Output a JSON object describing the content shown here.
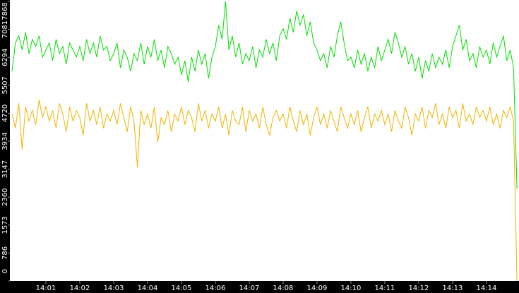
{
  "chart_data": {
    "type": "line",
    "x": [
      0,
      0.1,
      0.2,
      0.3,
      0.4,
      0.5,
      0.6,
      0.7,
      0.8,
      0.9,
      1,
      1.1,
      1.2,
      1.3,
      1.4,
      1.5,
      1.6,
      1.7,
      1.8,
      1.9,
      2,
      2.1,
      2.2,
      2.3,
      2.4,
      2.5,
      2.6,
      2.7,
      2.8,
      2.9,
      3,
      3.1,
      3.2,
      3.3,
      3.4,
      3.5,
      3.6,
      3.7,
      3.8,
      3.9,
      4,
      4.1,
      4.2,
      4.3,
      4.4,
      4.5,
      4.6,
      4.7,
      4.8,
      4.9,
      5,
      5.1,
      5.2,
      5.3,
      5.4,
      5.5,
      5.6,
      5.7,
      5.8,
      5.9,
      6,
      6.1,
      6.2,
      6.3,
      6.4,
      6.5,
      6.6,
      6.7,
      6.8,
      6.9,
      7,
      7.1,
      7.2,
      7.3,
      7.4,
      7.5,
      7.6,
      7.7,
      7.8,
      7.9,
      8,
      8.1,
      8.2,
      8.3,
      8.4,
      8.5,
      8.6,
      8.7,
      8.8,
      8.9,
      9,
      9.1,
      9.2,
      9.3,
      9.4,
      9.5,
      9.6,
      9.7,
      9.8,
      9.9,
      10,
      10.1,
      10.2,
      10.3,
      10.4,
      10.5,
      10.6,
      10.7,
      10.8,
      10.9,
      11,
      11.1,
      11.2,
      11.3,
      11.4,
      11.5,
      11.6,
      11.7,
      11.8,
      11.9,
      12,
      12.1,
      12.2,
      12.3,
      12.4,
      12.5,
      12.6,
      12.7,
      12.8,
      12.9,
      13,
      13.1,
      13.2,
      13.3,
      13.4,
      13.5,
      13.6,
      13.7,
      13.8,
      13.9,
      14,
      14.1,
      14.2,
      14.3,
      14.4,
      14.5,
      14.6,
      14.7,
      14.8,
      14.9
    ],
    "series": [
      {
        "color": "#00e000",
        "values": [
          5900,
          6700,
          6900,
          6500,
          7000,
          6400,
          6800,
          6600,
          6900,
          6300,
          6500,
          6700,
          6200,
          6800,
          6400,
          6600,
          6100,
          6700,
          6500,
          6300,
          6600,
          6200,
          6800,
          6400,
          6700,
          6300,
          6900,
          6500,
          6600,
          6200,
          6400,
          6700,
          6000,
          6500,
          6300,
          5900,
          6400,
          6200,
          6700,
          6100,
          6600,
          6300,
          6800,
          6200,
          6500,
          6000,
          6600,
          6400,
          6100,
          6300,
          5800,
          6200,
          5600,
          6300,
          5900,
          6500,
          6100,
          6400,
          5700,
          6300,
          6600,
          7200,
          6800,
          7868,
          6500,
          6900,
          6300,
          6700,
          6100,
          6400,
          6200,
          6600,
          6000,
          6500,
          6300,
          6800,
          6400,
          6700,
          6200,
          6900,
          7100,
          6800,
          7400,
          7000,
          7600,
          7200,
          7500,
          6900,
          7300,
          6700,
          6500,
          6200,
          6400,
          6000,
          6600,
          6300,
          6900,
          7300,
          6700,
          6200,
          6300,
          6000,
          6500,
          6100,
          6400,
          5900,
          6300,
          6000,
          6600,
          6200,
          6500,
          6800,
          6400,
          7000,
          6700,
          6300,
          6600,
          6100,
          6400,
          5900,
          6300,
          5700,
          6200,
          5900,
          6400,
          6000,
          6300,
          6100,
          6500,
          6000,
          6600,
          6900,
          7200,
          6500,
          6800,
          6200,
          6400,
          6000,
          6600,
          6300,
          6500,
          6100,
          6700,
          6300,
          6600,
          6900,
          6200,
          6500,
          6000,
          2600
        ]
      },
      {
        "color": "#f0b400",
        "values": [
          4700,
          4300,
          5000,
          3700,
          4900,
          4500,
          4800,
          4400,
          5100,
          4600,
          4900,
          4500,
          4800,
          4300,
          5000,
          4700,
          4200,
          4900,
          4500,
          4800,
          4600,
          4100,
          5000,
          4500,
          4800,
          4400,
          4900,
          4300,
          4700,
          4500,
          4800,
          4400,
          5000,
          4600,
          4200,
          4900,
          4500,
          3200,
          4800,
          4400,
          4700,
          4300,
          4900,
          3900,
          4600,
          4400,
          4800,
          4200,
          4700,
          4500,
          4900,
          4400,
          4800,
          4600,
          4200,
          5000,
          4500,
          4800,
          4300,
          4700,
          4500,
          4900,
          4300,
          4700,
          4100,
          4800,
          4500,
          4400,
          4900,
          4200,
          4800,
          4500,
          4700,
          4300,
          4900,
          4400,
          4100,
          4600,
          4800,
          4500,
          4700,
          4300,
          4900,
          4500,
          4200,
          4800,
          4400,
          4700,
          4100,
          4600,
          4900,
          4400,
          4700,
          4300,
          4800,
          4500,
          4200,
          4900,
          4600,
          4300,
          4700,
          4400,
          4800,
          4200,
          4600,
          4900,
          4300,
          4700,
          4500,
          4800,
          4400,
          4700,
          4200,
          4800,
          4500,
          4300,
          4900,
          4600,
          4100,
          4700,
          4500,
          4900,
          4300,
          4800,
          4600,
          5000,
          4400,
          4700,
          4300,
          4900,
          4600,
          4800,
          4300,
          5000,
          4500,
          4700,
          4400,
          4900,
          4600,
          4800,
          4500,
          4900,
          4400,
          4700,
          4300,
          4800,
          4600,
          4900,
          4500,
          0
        ]
      }
    ],
    "xlim": [
      0,
      14.96
    ],
    "xticks": [
      {
        "value": 1,
        "label": "14:01"
      },
      {
        "value": 2,
        "label": "14:02"
      },
      {
        "value": 3,
        "label": "14:03"
      },
      {
        "value": 4,
        "label": "14:04"
      },
      {
        "value": 5,
        "label": "14:05"
      },
      {
        "value": 6,
        "label": "14:06"
      },
      {
        "value": 7,
        "label": "14:07"
      },
      {
        "value": 8,
        "label": "14:08"
      },
      {
        "value": 9,
        "label": "14:09"
      },
      {
        "value": 10,
        "label": "14:10"
      },
      {
        "value": 11,
        "label": "14:11"
      },
      {
        "value": 12,
        "label": "14:12"
      },
      {
        "value": 13,
        "label": "14:13"
      },
      {
        "value": 14,
        "label": "14:14"
      }
    ],
    "ylim": [
      0,
      7868
    ],
    "yticks": [
      0,
      786,
      1573,
      2360,
      3147,
      3934,
      4720,
      5507,
      6294,
      7081,
      7868
    ]
  }
}
